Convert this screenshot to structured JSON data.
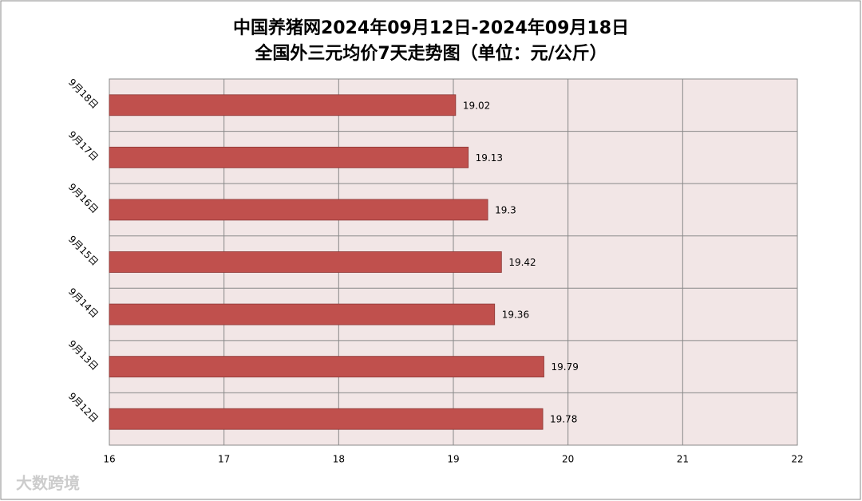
{
  "chart_data": {
    "type": "bar",
    "orientation": "horizontal",
    "title": "中国养猪网2024年09月12日-2024年09月18日",
    "subtitle": "全国外三元均价7天走势图（单位：元/公斤）",
    "categories": [
      "9月18日",
      "9月17日",
      "9月16日",
      "9月15日",
      "9月14日",
      "9月13日",
      "9月12日"
    ],
    "values": [
      19.02,
      19.13,
      19.3,
      19.42,
      19.36,
      19.79,
      19.78
    ],
    "color": "#c0504d",
    "xlim": [
      16,
      22
    ],
    "xticks": [
      16,
      17,
      18,
      19,
      20,
      21,
      22
    ],
    "grid": true,
    "watermark": "大数跨境"
  }
}
